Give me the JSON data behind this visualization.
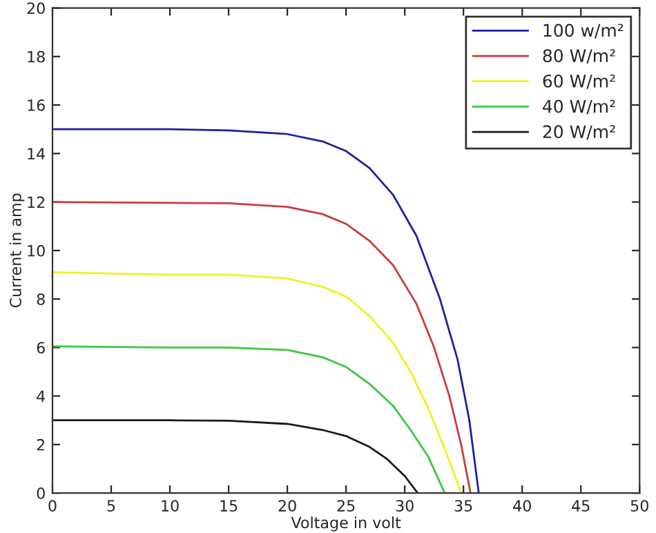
{
  "chart_data": {
    "type": "line",
    "xlabel": "Voltage in volt",
    "ylabel": "Current in amp",
    "xlim": [
      0,
      50
    ],
    "ylim": [
      0,
      20
    ],
    "xticks": [
      0,
      5,
      10,
      15,
      20,
      25,
      30,
      35,
      40,
      45,
      50
    ],
    "yticks": [
      0,
      2,
      4,
      6,
      8,
      10,
      12,
      14,
      16,
      18,
      20
    ],
    "legend": "top right",
    "grid": false,
    "marker": "none",
    "line_style": "solid",
    "series": [
      {
        "name": "100 w/m²",
        "color": "#1f1f9f",
        "x": [
          0,
          10,
          15,
          20,
          23,
          25,
          27,
          29,
          31,
          33,
          34.5,
          35.5,
          36.3
        ],
        "values": [
          15,
          15,
          14.95,
          14.8,
          14.5,
          14.1,
          13.4,
          12.3,
          10.6,
          8,
          5.5,
          3,
          0
        ]
      },
      {
        "name": "80 W/m²",
        "color": "#c83c3c",
        "x": [
          0,
          15,
          20,
          23,
          25,
          27,
          29,
          31,
          32.5,
          33.8,
          34.8,
          35.6
        ],
        "values": [
          12,
          11.95,
          11.8,
          11.5,
          11.1,
          10.4,
          9.4,
          7.8,
          6,
          4,
          2,
          0
        ]
      },
      {
        "name": "60 W/m²",
        "color": "#f0f020",
        "x": [
          0,
          5,
          10,
          15,
          20,
          23,
          25,
          27,
          29,
          30.5,
          32,
          33.5,
          34.8
        ],
        "values": [
          9.1,
          9.05,
          9,
          9,
          8.85,
          8.5,
          8.1,
          7.3,
          6.2,
          5,
          3.5,
          1.7,
          0
        ]
      },
      {
        "name": "40 W/m²",
        "color": "#3cc83c",
        "x": [
          0,
          10,
          15,
          20,
          23,
          25,
          27,
          29,
          30.5,
          32,
          33.4
        ],
        "values": [
          6.05,
          6,
          6,
          5.9,
          5.6,
          5.2,
          4.5,
          3.6,
          2.6,
          1.5,
          0
        ]
      },
      {
        "name": "20 W/m²",
        "color": "#1a1a1a",
        "x": [
          0,
          10,
          15,
          20,
          23,
          25,
          27,
          28.5,
          30,
          31.1
        ],
        "values": [
          3,
          3,
          2.98,
          2.85,
          2.6,
          2.35,
          1.9,
          1.4,
          0.7,
          0
        ]
      }
    ]
  }
}
